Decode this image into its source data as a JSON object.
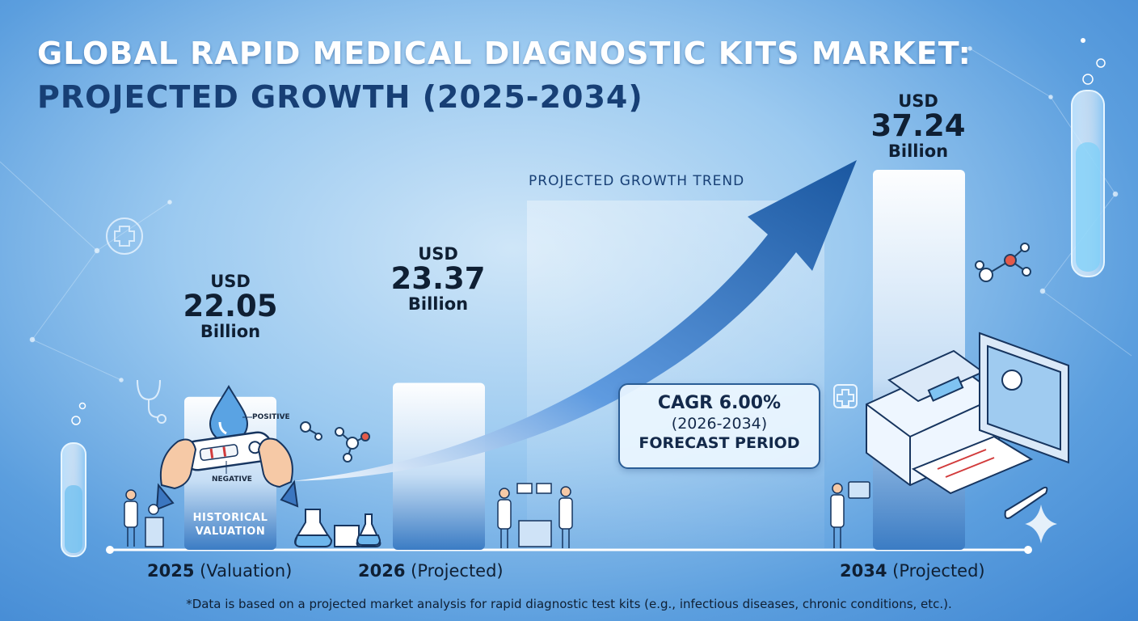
{
  "title": {
    "line1": "GLOBAL RAPID MEDICAL DIAGNOSTIC KITS MARKET:",
    "line2": "PROJECTED GROWTH (2025-2034)"
  },
  "chart_data": {
    "type": "bar",
    "categories": [
      "2025",
      "2026",
      "2034"
    ],
    "category_notes": [
      "(Valuation)",
      "(Projected)",
      "(Projected)"
    ],
    "values": [
      22.05,
      23.37,
      37.24
    ],
    "value_labels": [
      {
        "currency": "USD",
        "number": "22.05",
        "unit": "Billion"
      },
      {
        "currency": "USD",
        "number": "23.37",
        "unit": "Billion"
      },
      {
        "currency": "USD",
        "number": "37.24",
        "unit": "Billion"
      }
    ],
    "title": "GLOBAL RAPID MEDICAL DIAGNOSTIC KITS MARKET: PROJECTED GROWTH (2025-2034)",
    "xlabel": "",
    "ylabel": "",
    "ylim": [
      0,
      40
    ],
    "grid": false,
    "legend": "none",
    "bar_annotation": "HISTORICAL VALUATION",
    "trend_label": "PROJECTED GROWTH TREND",
    "cagr": {
      "line1": "CAGR 6.00%",
      "line2": "(2026-2034)",
      "line3": "FORECAST PERIOD"
    },
    "footnote": "*Data is based on a projected market analysis for rapid diagnostic test kits (e.g., infectious diseases, chronic conditions, etc.)."
  },
  "illustration": {
    "test_kit_labels": {
      "positive": "POSITIVE",
      "negative": "NEGATIVE"
    }
  },
  "colors": {
    "background_center": "#cfe6f8",
    "background_edge": "#3f86d2",
    "title_primary": "#ffffff",
    "title_secondary": "#173f75",
    "arrow": "#1f5fa8",
    "bar_top": "#ffffff",
    "bar_bottom": "#3b7cc4"
  },
  "icons": [
    "test-tube-icon",
    "medical-cross-icon",
    "stethoscope-icon",
    "molecule-icon",
    "doctor-icon",
    "lab-analyzer-icon",
    "monitor-icon",
    "flask-icon",
    "sparkle-icon",
    "rapid-test-kit-icon",
    "water-drop-icon"
  ]
}
